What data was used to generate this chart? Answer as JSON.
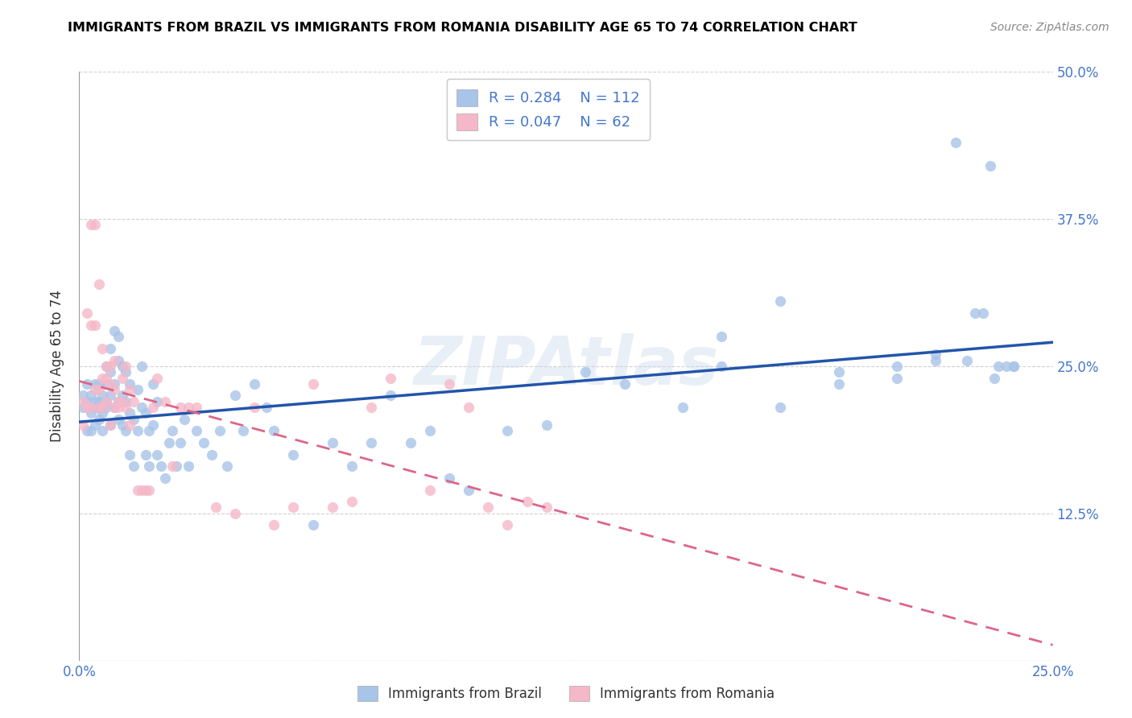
{
  "title": "IMMIGRANTS FROM BRAZIL VS IMMIGRANTS FROM ROMANIA DISABILITY AGE 65 TO 74 CORRELATION CHART",
  "source": "Source: ZipAtlas.com",
  "ylabel": "Disability Age 65 to 74",
  "xlabel_brazil": "Immigrants from Brazil",
  "xlabel_romania": "Immigrants from Romania",
  "xlim": [
    0.0,
    0.25
  ],
  "ylim": [
    0.0,
    0.5
  ],
  "xticks": [
    0.0,
    0.05,
    0.1,
    0.15,
    0.2,
    0.25
  ],
  "xtick_labels": [
    "0.0%",
    "",
    "",
    "",
    "",
    "25.0%"
  ],
  "yticks": [
    0.0,
    0.125,
    0.25,
    0.375,
    0.5
  ],
  "ytick_labels_right": [
    "",
    "12.5%",
    "25.0%",
    "37.5%",
    "50.0%"
  ],
  "R_brazil": 0.284,
  "N_brazil": 112,
  "R_romania": 0.047,
  "N_romania": 62,
  "brazil_color": "#a8c4e8",
  "romania_color": "#f5b8c8",
  "brazil_line_color": "#2255aa",
  "romania_line_color": "#dd6688",
  "tick_color": "#4477cc",
  "watermark": "ZIPAtlas",
  "brazil_scatter_x": [
    0.001,
    0.001,
    0.002,
    0.002,
    0.002,
    0.003,
    0.003,
    0.003,
    0.003,
    0.004,
    0.004,
    0.004,
    0.004,
    0.005,
    0.005,
    0.005,
    0.005,
    0.006,
    0.006,
    0.006,
    0.006,
    0.007,
    0.007,
    0.007,
    0.007,
    0.008,
    0.008,
    0.008,
    0.008,
    0.009,
    0.009,
    0.009,
    0.01,
    0.01,
    0.01,
    0.01,
    0.011,
    0.011,
    0.011,
    0.012,
    0.012,
    0.012,
    0.013,
    0.013,
    0.013,
    0.014,
    0.014,
    0.015,
    0.015,
    0.016,
    0.016,
    0.017,
    0.017,
    0.018,
    0.018,
    0.019,
    0.019,
    0.02,
    0.02,
    0.021,
    0.022,
    0.023,
    0.024,
    0.025,
    0.026,
    0.027,
    0.028,
    0.03,
    0.032,
    0.034,
    0.036,
    0.038,
    0.04,
    0.042,
    0.045,
    0.048,
    0.05,
    0.055,
    0.06,
    0.065,
    0.07,
    0.075,
    0.08,
    0.085,
    0.09,
    0.095,
    0.1,
    0.11,
    0.12,
    0.13,
    0.14,
    0.155,
    0.165,
    0.18,
    0.195,
    0.21,
    0.22,
    0.23,
    0.235,
    0.24,
    0.165,
    0.18,
    0.195,
    0.21,
    0.22,
    0.225,
    0.228,
    0.232,
    0.234,
    0.236,
    0.238,
    0.24
  ],
  "brazil_scatter_y": [
    0.215,
    0.225,
    0.195,
    0.22,
    0.235,
    0.21,
    0.195,
    0.225,
    0.215,
    0.2,
    0.22,
    0.235,
    0.215,
    0.205,
    0.22,
    0.235,
    0.215,
    0.195,
    0.215,
    0.225,
    0.21,
    0.22,
    0.235,
    0.25,
    0.215,
    0.2,
    0.225,
    0.245,
    0.265,
    0.215,
    0.235,
    0.28,
    0.205,
    0.22,
    0.255,
    0.275,
    0.2,
    0.225,
    0.25,
    0.195,
    0.22,
    0.245,
    0.175,
    0.21,
    0.235,
    0.165,
    0.205,
    0.195,
    0.23,
    0.215,
    0.25,
    0.175,
    0.21,
    0.165,
    0.195,
    0.2,
    0.235,
    0.175,
    0.22,
    0.165,
    0.155,
    0.185,
    0.195,
    0.165,
    0.185,
    0.205,
    0.165,
    0.195,
    0.185,
    0.175,
    0.195,
    0.165,
    0.225,
    0.195,
    0.235,
    0.215,
    0.195,
    0.175,
    0.115,
    0.185,
    0.165,
    0.185,
    0.225,
    0.185,
    0.195,
    0.155,
    0.145,
    0.195,
    0.2,
    0.245,
    0.235,
    0.215,
    0.25,
    0.215,
    0.235,
    0.24,
    0.255,
    0.295,
    0.24,
    0.25,
    0.275,
    0.305,
    0.245,
    0.25,
    0.26,
    0.44,
    0.255,
    0.295,
    0.42,
    0.25,
    0.25,
    0.25
  ],
  "romania_scatter_x": [
    0.001,
    0.001,
    0.002,
    0.002,
    0.003,
    0.003,
    0.003,
    0.004,
    0.004,
    0.004,
    0.005,
    0.005,
    0.005,
    0.006,
    0.006,
    0.006,
    0.007,
    0.007,
    0.007,
    0.008,
    0.008,
    0.008,
    0.009,
    0.009,
    0.009,
    0.01,
    0.01,
    0.011,
    0.011,
    0.012,
    0.012,
    0.013,
    0.013,
    0.014,
    0.015,
    0.016,
    0.017,
    0.018,
    0.019,
    0.02,
    0.022,
    0.024,
    0.026,
    0.028,
    0.03,
    0.035,
    0.04,
    0.045,
    0.05,
    0.055,
    0.06,
    0.065,
    0.07,
    0.075,
    0.08,
    0.09,
    0.095,
    0.1,
    0.105,
    0.11,
    0.115,
    0.12
  ],
  "romania_scatter_y": [
    0.2,
    0.22,
    0.215,
    0.295,
    0.215,
    0.285,
    0.37,
    0.285,
    0.37,
    0.23,
    0.215,
    0.23,
    0.32,
    0.215,
    0.24,
    0.265,
    0.22,
    0.24,
    0.25,
    0.235,
    0.25,
    0.2,
    0.215,
    0.23,
    0.255,
    0.22,
    0.215,
    0.24,
    0.22,
    0.25,
    0.215,
    0.2,
    0.23,
    0.22,
    0.145,
    0.145,
    0.145,
    0.145,
    0.215,
    0.24,
    0.22,
    0.165,
    0.215,
    0.215,
    0.215,
    0.13,
    0.125,
    0.215,
    0.115,
    0.13,
    0.235,
    0.13,
    0.135,
    0.215,
    0.24,
    0.145,
    0.235,
    0.215,
    0.13,
    0.115,
    0.135,
    0.13
  ]
}
